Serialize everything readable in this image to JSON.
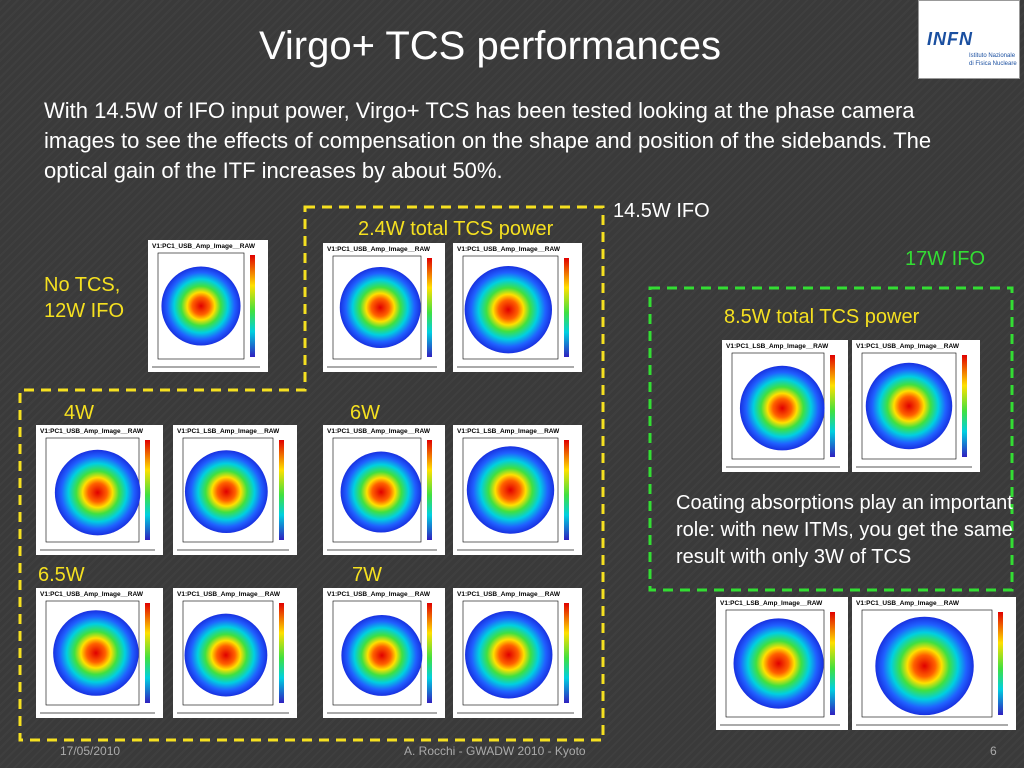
{
  "header": {
    "title": "Virgo+ TCS performances"
  },
  "body": {
    "text": "With 14.5W of IFO input power, Virgo+ TCS has been tested looking at the phase camera images to see the effects of compensation on the shape and position of the sidebands. The optical gain of the ITF increases by about 50%."
  },
  "logo": {
    "acronym": "INFN",
    "lines": [
      "Istituto Nazionale",
      "di Fisica Nucleare"
    ]
  },
  "regions": {
    "yellow": "14.5W IFO",
    "green": "17W IFO"
  },
  "groups": [
    {
      "label": "No TCS,\n12W IFO",
      "images": [
        "V1:PC1_USB_Amp_Image__RAW"
      ]
    },
    {
      "label": "2.4W total TCS power",
      "images": [
        "V1:PC1_USB_Amp_Image__RAW",
        "V1:PC1_USB_Amp_Image__RAW"
      ]
    },
    {
      "label": "4W",
      "images": [
        "V1:PC1_USB_Amp_Image__RAW",
        "V1:PC1_LSB_Amp_Image__RAW"
      ]
    },
    {
      "label": "6W",
      "images": [
        "V1:PC1_USB_Amp_Image__RAW",
        "V1:PC1_LSB_Amp_Image__RAW"
      ]
    },
    {
      "label": "6.5W",
      "images": [
        "V1:PC1_USB_Amp_Image__RAW",
        "V1:PC1_USB_Amp_Image__RAW"
      ]
    },
    {
      "label": "7W",
      "images": [
        "V1:PC1_USB_Amp_Image__RAW",
        "V1:PC1_USB_Amp_Image__RAW"
      ]
    },
    {
      "label": "8.5W total TCS power",
      "images": [
        "V1:PC1_LSB_Amp_Image__RAW",
        "V1:PC1_USB_Amp_Image__RAW"
      ]
    },
    {
      "label": null,
      "images": [
        "V1:PC1_LSB_Amp_Image__RAW",
        "V1:PC1_USB_Amp_Image__RAW"
      ]
    }
  ],
  "coating": "Coating absorptions play an important role: with new ITMs, you get the same result with only 3W of TCS",
  "footer": {
    "date": "17/05/2010",
    "author": "A. Rocchi - GWADW 2010 - Kyoto",
    "page": "6"
  }
}
